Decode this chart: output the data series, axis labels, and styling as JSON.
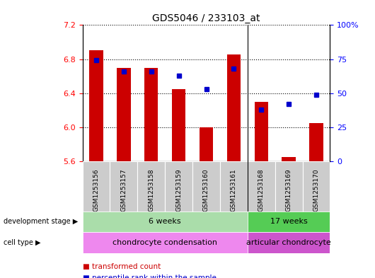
{
  "title": "GDS5046 / 233103_at",
  "samples": [
    "GSM1253156",
    "GSM1253157",
    "GSM1253158",
    "GSM1253159",
    "GSM1253160",
    "GSM1253161",
    "GSM1253168",
    "GSM1253169",
    "GSM1253170"
  ],
  "transformed_count": [
    6.9,
    6.7,
    6.7,
    6.45,
    6.0,
    6.85,
    6.3,
    5.65,
    6.05
  ],
  "percentile_rank": [
    74,
    66,
    66,
    63,
    53,
    68,
    38,
    42,
    49
  ],
  "ylim_left": [
    5.6,
    7.2
  ],
  "ylim_right": [
    0,
    100
  ],
  "yticks_left": [
    5.6,
    6.0,
    6.4,
    6.8,
    7.2
  ],
  "yticks_right": [
    0,
    25,
    50,
    75,
    100
  ],
  "bar_color": "#cc0000",
  "dot_color": "#0000cc",
  "bar_bottom": 5.6,
  "groups": [
    {
      "label": "6 weeks",
      "start": 0,
      "end": 6,
      "color": "#aaddaa"
    },
    {
      "label": "17 weeks",
      "start": 6,
      "end": 9,
      "color": "#55cc55"
    }
  ],
  "cell_types": [
    {
      "label": "chondrocyte condensation",
      "start": 0,
      "end": 6,
      "color": "#ee88ee"
    },
    {
      "label": "articular chondrocyte",
      "start": 6,
      "end": 9,
      "color": "#cc55cc"
    }
  ],
  "dev_stage_label": "development stage",
  "cell_type_label": "cell type",
  "legend_bar_label": "transformed count",
  "legend_dot_label": "percentile rank within the sample",
  "sample_bg": "#cccccc",
  "separator_color": "#aaaaaa"
}
